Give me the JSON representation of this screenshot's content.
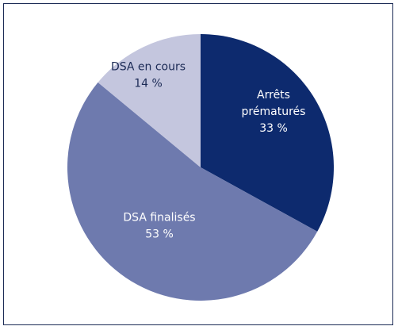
{
  "chart_data": {
    "type": "pie",
    "title": "",
    "legend": "none",
    "slices": [
      {
        "label_lines": [
          "Arrêts",
          "prématurés"
        ],
        "value_label": "33 %",
        "value": 33,
        "color": "#0d2a6e",
        "text_color": "#ffffff"
      },
      {
        "label_lines": [
          "DSA finalisés"
        ],
        "value_label": "53 %",
        "value": 53,
        "color": "#6e7aae",
        "text_color": "#ffffff"
      },
      {
        "label_lines": [
          "DSA en cours"
        ],
        "value_label": "14 %",
        "value": 14,
        "color": "#c4c6de",
        "text_color": "#1b2a55"
      }
    ]
  }
}
